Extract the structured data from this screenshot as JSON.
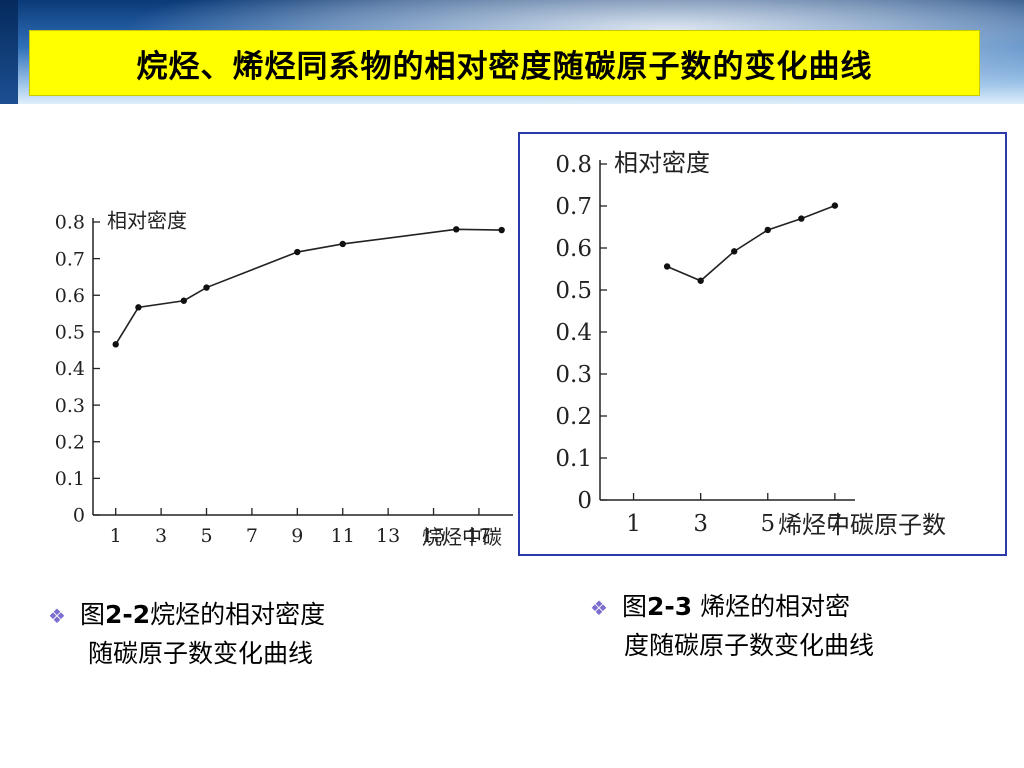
{
  "slide": {
    "title": "烷烃、烯烃同系物的相对密度随碳原子数的变化曲线"
  },
  "captions": {
    "left": {
      "prefix": "图",
      "fig_no": "2-2",
      "line1_rest": "烷烃的相对密度",
      "line2": "随碳原子数变化曲线"
    },
    "right": {
      "prefix": "图",
      "fig_no": "2-3",
      "line1_rest": " 烯烃的相对密",
      "line2": "度随碳原子数变化曲线"
    }
  },
  "chart_data": [
    {
      "type": "line",
      "ylabel": "相对密度",
      "xlabel": "烷烃中碳",
      "xlim": [
        0,
        18.5
      ],
      "ylim": [
        0,
        0.8
      ],
      "x_ticks": [
        1,
        3,
        5,
        7,
        9,
        11,
        13,
        15,
        17
      ],
      "y_ticks": [
        0,
        0.1,
        0.2,
        0.3,
        0.4,
        0.5,
        0.6,
        0.7,
        0.8
      ],
      "y_tick_labels": [
        "0",
        "0.1",
        "0.2",
        "0.3",
        "0.4",
        "0.5",
        "0.6",
        "0.7",
        "0.8"
      ],
      "x": [
        1,
        2,
        4,
        5,
        9,
        11,
        16,
        18
      ],
      "y": [
        0.466,
        0.567,
        0.585,
        0.621,
        0.718,
        0.74,
        0.78,
        0.778
      ]
    },
    {
      "type": "line",
      "ylabel": "相对密度",
      "xlabel": "烯烃中碳原子数",
      "xlim": [
        0,
        7.6
      ],
      "ylim": [
        0,
        0.8
      ],
      "x_ticks": [
        1,
        3,
        5,
        7
      ],
      "y_ticks": [
        0,
        0.1,
        0.2,
        0.3,
        0.4,
        0.5,
        0.6,
        0.7,
        0.8
      ],
      "y_tick_labels": [
        "0",
        "0.1",
        "0.2",
        "0.3",
        "0.4",
        "0.5",
        "0.6",
        "0.7",
        "0.8"
      ],
      "x": [
        2,
        3,
        4,
        5,
        6,
        7
      ],
      "y": [
        0.556,
        0.522,
        0.592,
        0.643,
        0.67,
        0.701
      ]
    }
  ]
}
